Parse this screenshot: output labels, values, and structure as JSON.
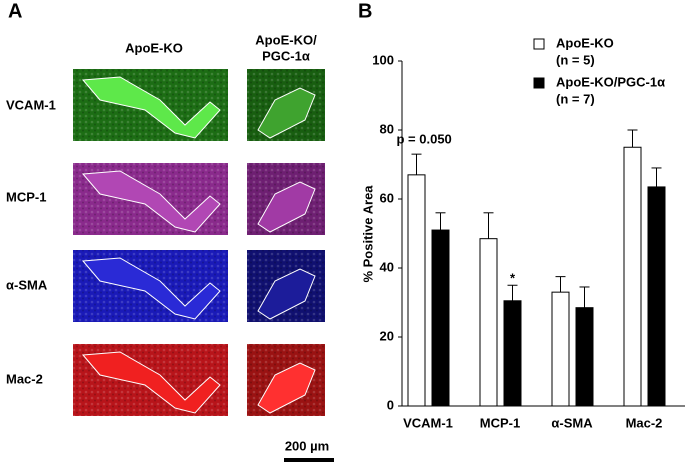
{
  "panel_a": {
    "label": "A",
    "column_headers": [
      "ApoE-KO",
      "ApoE-KO/",
      "PGC-1α"
    ],
    "row_labels": [
      "VCAM-1",
      "MCP-1",
      "α-SMA",
      "Mac-2"
    ],
    "scale_bar": "200 µm"
  },
  "chart_data": {
    "type": "bar",
    "panel_label": "B",
    "y_label": "% Positive Area",
    "categories": [
      "VCAM-1",
      "MCP-1",
      "α-SMA",
      "Mac-2"
    ],
    "series": [
      {
        "name": "ApoE-KO",
        "n_label": "(n = 5)",
        "color": "#ffffff",
        "values": [
          67,
          48.5,
          33,
          75
        ],
        "errors": [
          6,
          7.5,
          4.5,
          5
        ]
      },
      {
        "name": "ApoE-KO/PGC-1α",
        "n_label": "(n = 7)",
        "color": "#000000",
        "values": [
          51,
          30.5,
          28.5,
          63.5
        ],
        "errors": [
          5,
          4.5,
          6,
          5.5
        ]
      }
    ],
    "annotations": [
      {
        "text": "p = 0.050",
        "series": 0,
        "category": 0
      },
      {
        "text": "*",
        "series": 1,
        "category": 1
      }
    ],
    "ylim": [
      0,
      100
    ],
    "yticks": [
      0,
      20,
      40,
      60,
      80,
      100
    ]
  }
}
